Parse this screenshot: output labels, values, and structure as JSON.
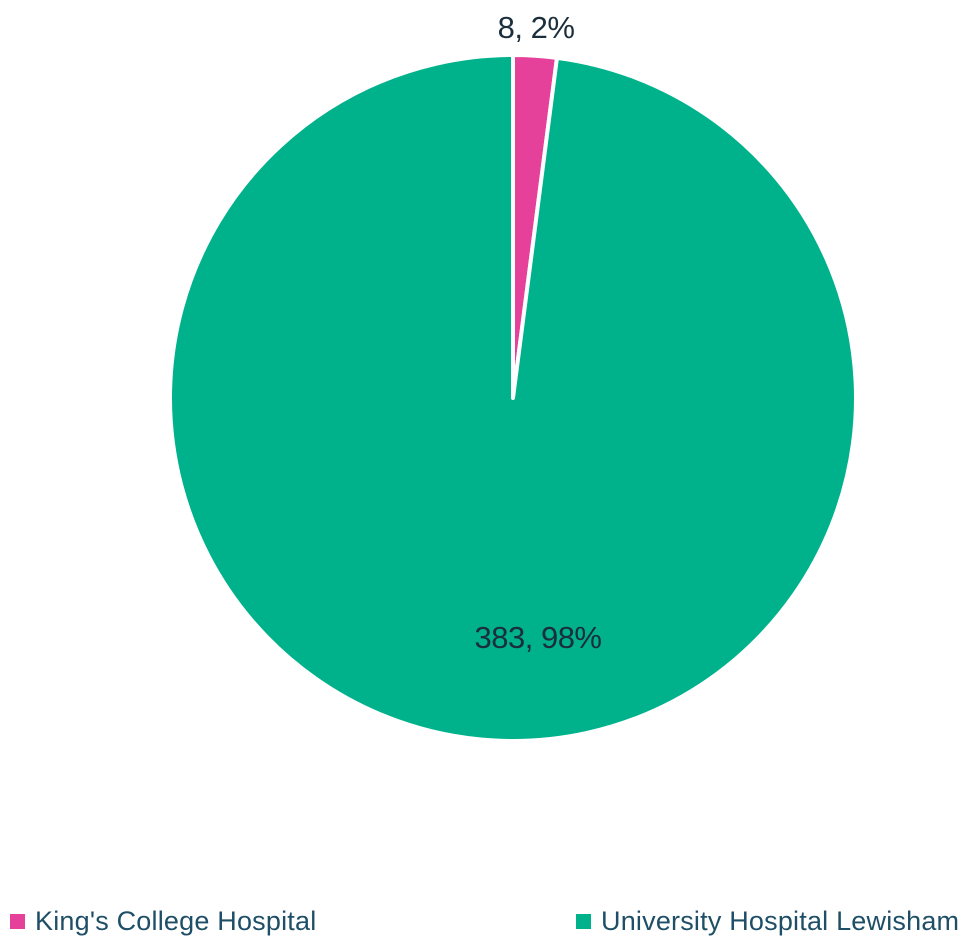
{
  "chart_data": {
    "type": "pie",
    "title": "",
    "slices": [
      {
        "name": "King's College Hospital",
        "value": 8,
        "percent": 2,
        "label": "8, 2%",
        "color": "#e5409a"
      },
      {
        "name": "University Hospital Lewisham",
        "value": 383,
        "percent": 98,
        "label": "383, 98%",
        "color": "#00b28c"
      }
    ],
    "start_angle_deg": 0,
    "direction": "clockwise",
    "legend_placement": "bottom",
    "slice_border_color": "#ffffff"
  }
}
